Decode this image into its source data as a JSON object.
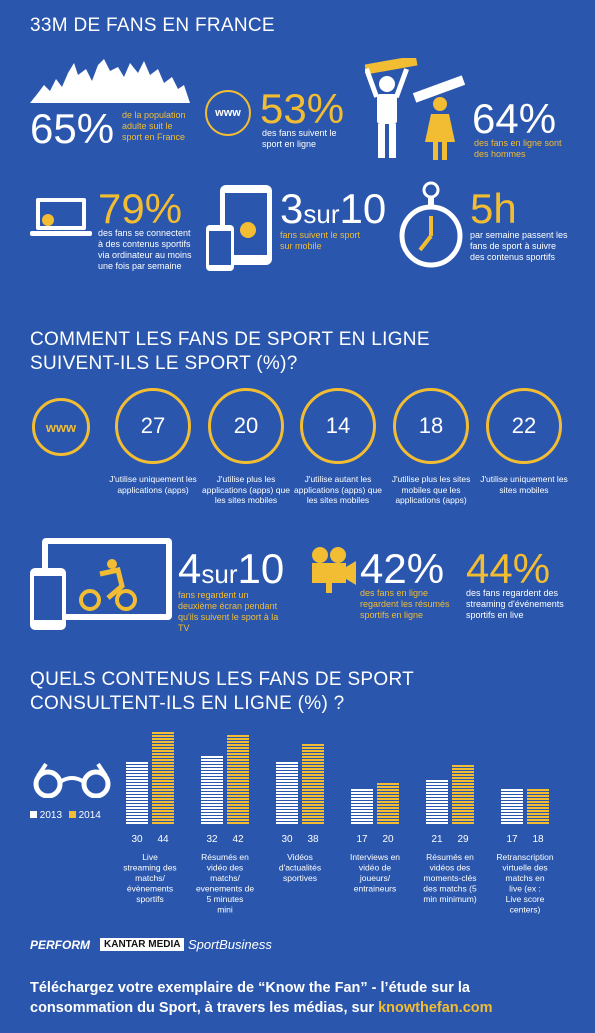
{
  "section1": {
    "title": "33M DE FANS EN FRANCE",
    "stat_65": {
      "value": "65%",
      "text": "de la population adulte suit le sport en France"
    },
    "stat_53": {
      "value": "53%",
      "text": "des fans suivent le sport en ligne"
    },
    "stat_64": {
      "value": "64%",
      "text": "des fans en ligne sont des hommes"
    },
    "stat_79": {
      "value": "79%",
      "text": "des fans se connectent à des contenus sportifs via ordinateur au moins une fois par semaine"
    },
    "stat_3sur10": {
      "num": "3",
      "sur": "sur",
      "den": "10",
      "text": "fans suivent le sport sur mobile"
    },
    "stat_5h": {
      "value": "5h",
      "text": "par semaine passent les fans de sport à suivre des contenus sportifs"
    },
    "www_label": "www"
  },
  "section2": {
    "title_line1": "COMMENT LES FANS DE SPORT EN LIGNE",
    "title_line2": "SUIVENT-ILS LE SPORT (%)?",
    "www_label": "www",
    "circles": [
      {
        "value": "27",
        "label": "J'utilise uniquement les applications (apps)"
      },
      {
        "value": "20",
        "label": "J'utilise plus les applications (apps) que les sites mobiles"
      },
      {
        "value": "14",
        "label": "J'utilise autant les applications (apps) que les sites mobiles"
      },
      {
        "value": "18",
        "label": "J'utilise plus les sites mobiles que les applications (apps)"
      },
      {
        "value": "22",
        "label": "J'utilise uniquement les sites mobiles"
      }
    ],
    "stat_4sur10": {
      "num": "4",
      "sur": "sur",
      "den": "10",
      "text": "fans regardent un deuxième écran pendant qu'ils suivent le sport à la TV"
    },
    "stat_42": {
      "value": "42%",
      "text": "des fans en ligne regardent les résumés sportifs en ligne"
    },
    "stat_44": {
      "value": "44%",
      "text": "des fans regardent des streaming d'événements sportifs en live"
    }
  },
  "section3": {
    "title_line1": "QUELS CONTENUS LES FANS DE SPORT",
    "title_line2": "CONSULTENT-ILS EN LIGNE (%) ?"
  },
  "chart_data": {
    "type": "bar",
    "categories": [
      "Live streaming des matchs/ évènements sportifs",
      "Résumés en vidéo des matchs/ evenements de 5 minutes mini",
      "Vidéos d'actualités sportives",
      "Interviews en vidéo de joueurs/ entraineurs",
      "Résumés en vidéos des moments-clés des matchs (5 min minimum)",
      "Retranscription virtuelle des matchs en live (ex : Live score centers)"
    ],
    "series": [
      {
        "name": "2013",
        "values": [
          30,
          32,
          30,
          17,
          21,
          17
        ],
        "color": "#ffffff"
      },
      {
        "name": "2014",
        "values": [
          44,
          42,
          38,
          20,
          29,
          18
        ],
        "color": "#f2bd33"
      }
    ],
    "legend": "left"
  },
  "footer": {
    "logos": [
      "PERFORM",
      "KANTAR MEDIA",
      "SportBusiness"
    ],
    "cta_text": "Téléchargez votre exemplaire de “Know the Fan” - l’étude sur la consommation du Sport, à travers les médias, sur ",
    "cta_link": "knowthefan.com"
  }
}
